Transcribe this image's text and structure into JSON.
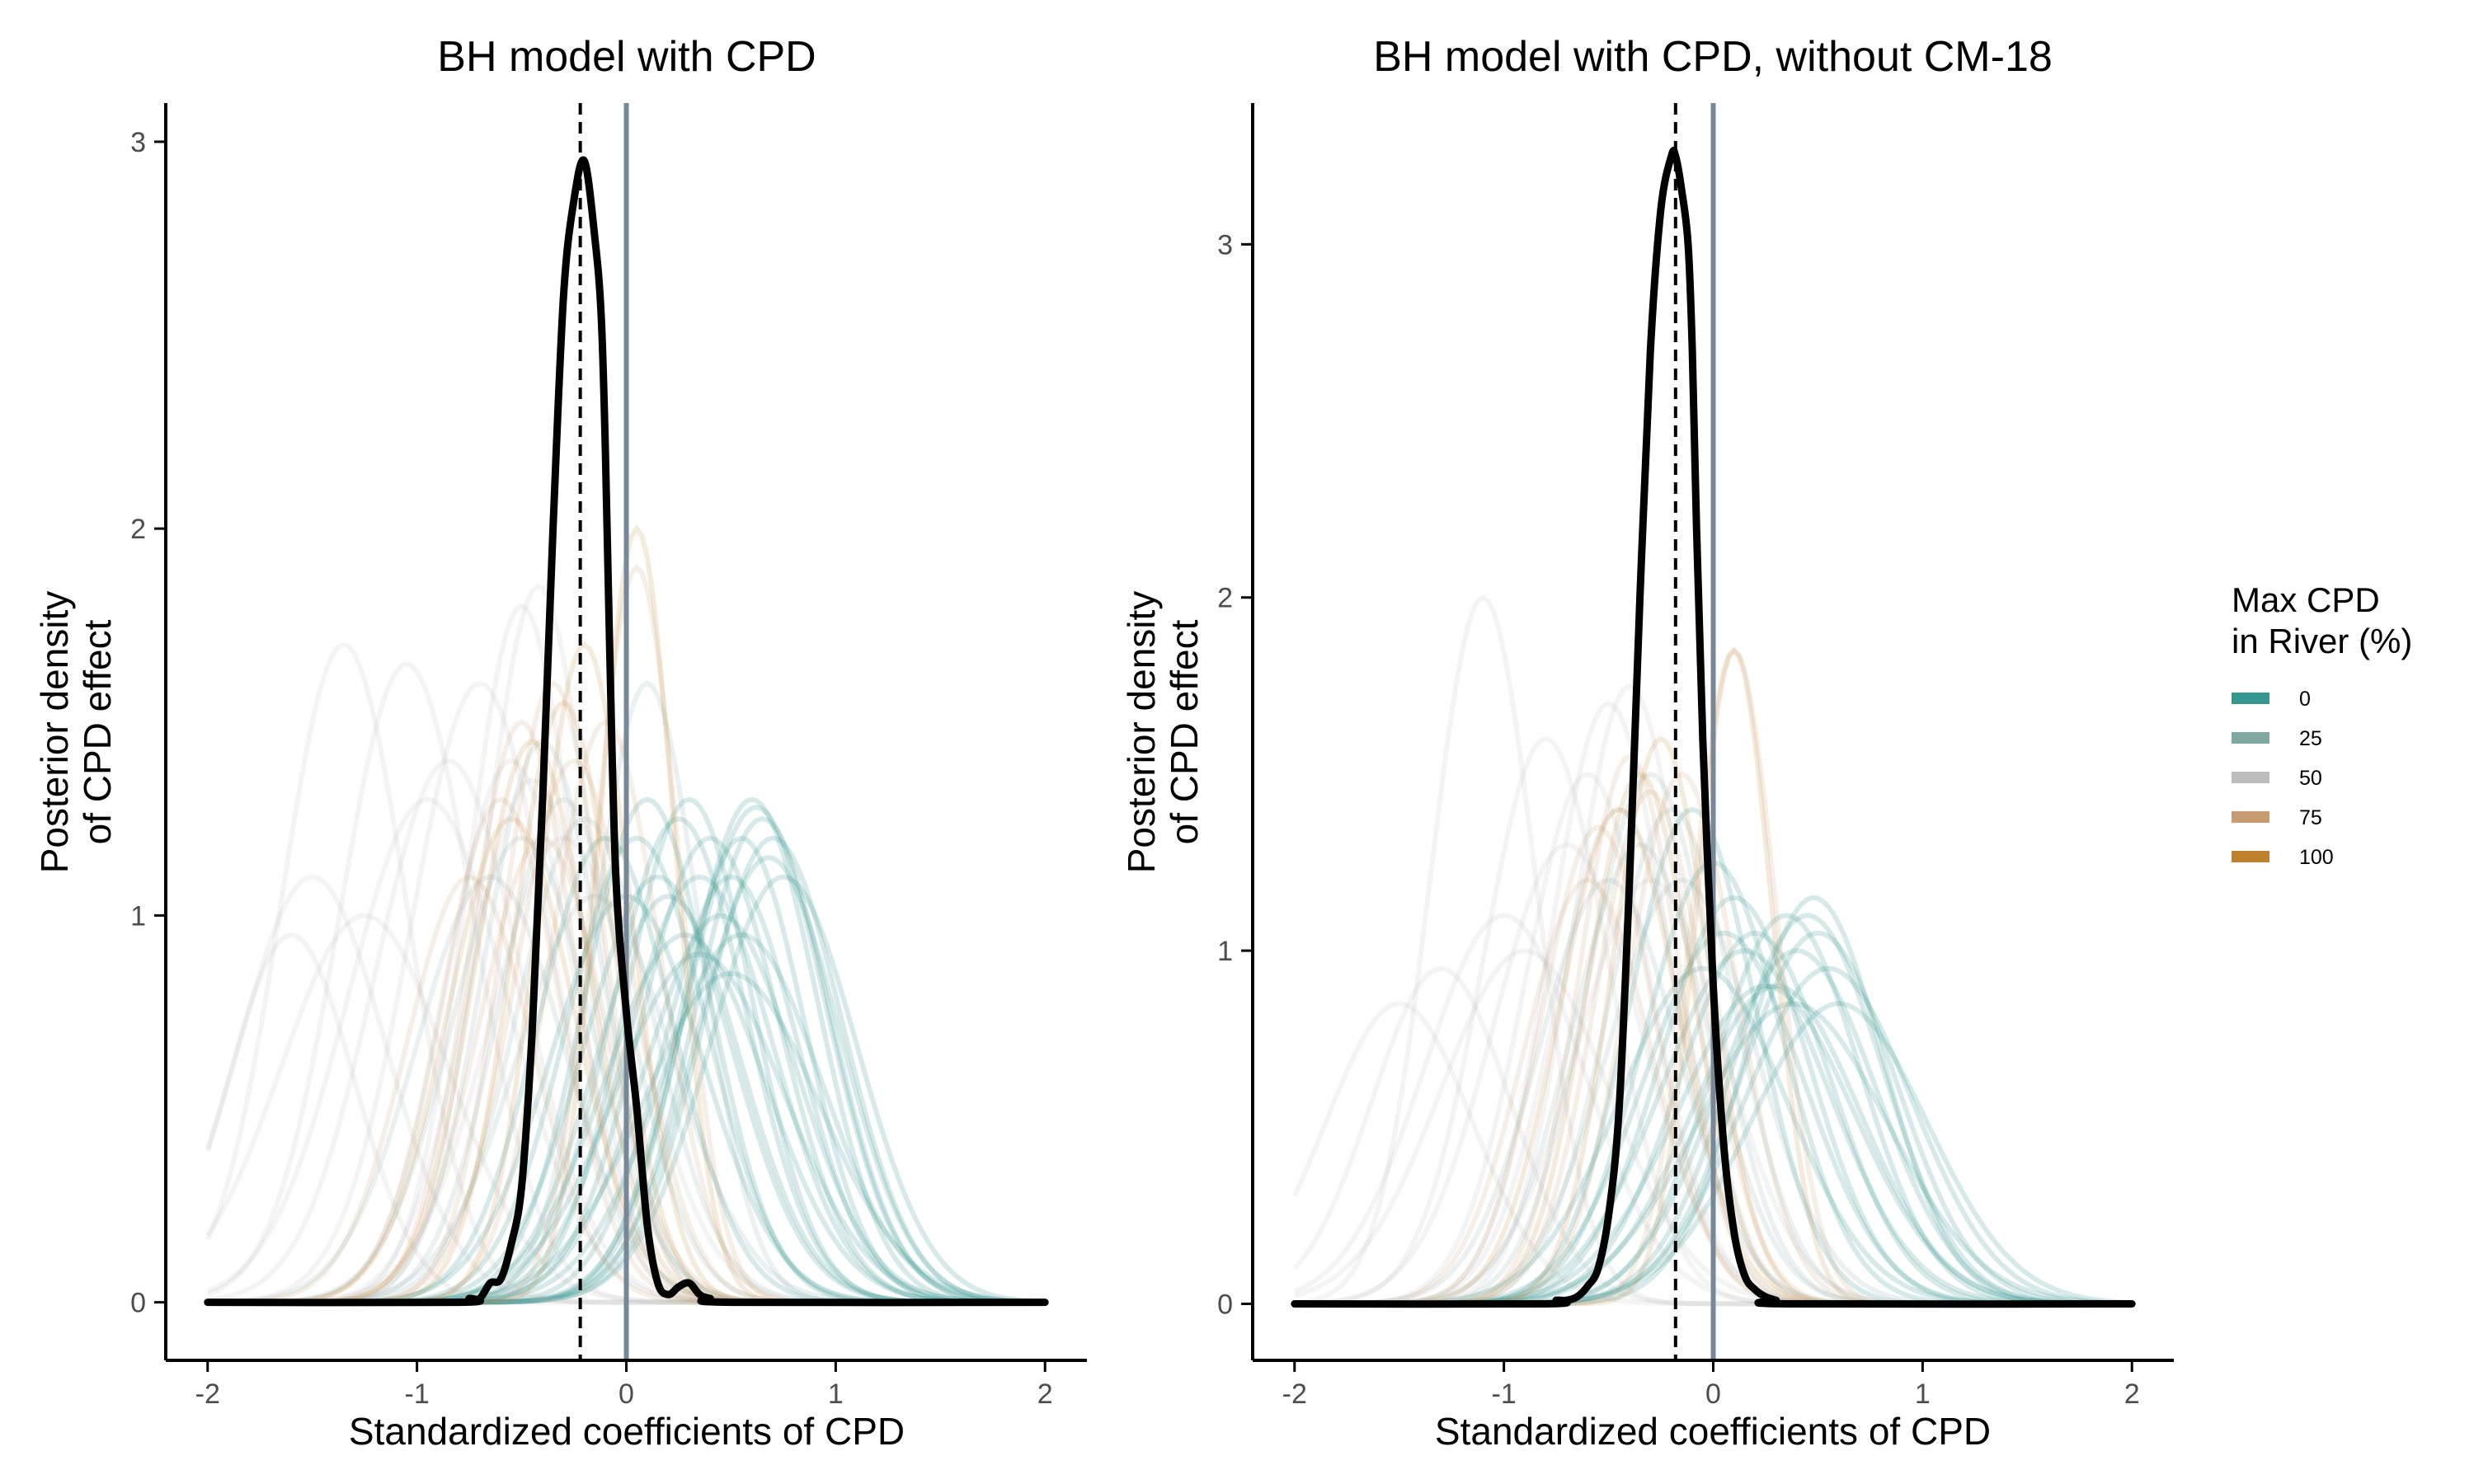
{
  "colors": {
    "mean_line": "#000000",
    "zero_line": "#778899",
    "axis": "#000000",
    "legend_scale": [
      "#35978f",
      "#80a8a3",
      "#bdbdbd",
      "#c79c73",
      "#bf812d"
    ]
  },
  "legend": {
    "title_line1": "Max CPD",
    "title_line2": "in River (%)",
    "items": [
      {
        "label": "0",
        "color": "#35978f"
      },
      {
        "label": "25",
        "color": "#80a8a3"
      },
      {
        "label": "50",
        "color": "#bdbdbd"
      },
      {
        "label": "75",
        "color": "#c79c73"
      },
      {
        "label": "100",
        "color": "#bf812d"
      }
    ]
  },
  "chart_data": [
    {
      "type": "line",
      "title": "BH model with CPD",
      "xlabel": "Standardized coefficients of CPD",
      "ylabel_line1": "Posterior density",
      "ylabel_line2": "of CPD effect",
      "xlim": [
        -2.2,
        2.2
      ],
      "ylim": [
        -0.15,
        3.1
      ],
      "xticks": [
        "-2",
        "-1",
        "0",
        "1",
        "2"
      ],
      "yticks": [
        "0",
        "1",
        "2",
        "3"
      ],
      "vlines": {
        "dashed_x": -0.22,
        "solid_x": 0.0
      },
      "series": [
        {
          "role": "posterior-mean",
          "x": [
            -2.0,
            -0.8,
            -0.75,
            -0.7,
            -0.65,
            -0.6,
            -0.55,
            -0.5,
            -0.45,
            -0.4,
            -0.35,
            -0.3,
            -0.25,
            -0.2,
            -0.15,
            -0.12,
            -0.1,
            -0.08,
            -0.05,
            0.0,
            0.05,
            0.1,
            0.15,
            0.2,
            0.25,
            0.3,
            0.35,
            0.4,
            0.5,
            2.0
          ],
          "y": [
            0.0,
            0.0,
            0.01,
            0.01,
            0.05,
            0.06,
            0.15,
            0.3,
            0.7,
            1.3,
            2.0,
            2.6,
            2.85,
            2.95,
            2.75,
            2.55,
            2.2,
            1.7,
            1.1,
            0.75,
            0.5,
            0.2,
            0.05,
            0.02,
            0.04,
            0.05,
            0.02,
            0.01,
            0.0,
            0.0
          ]
        }
      ],
      "background_curves": {
        "x_range": [
          -2.0,
          2.0
        ],
        "curves": [
          {
            "mu": 0.65,
            "sd": 0.32,
            "peak": 1.25,
            "cpd": 0
          },
          {
            "mu": 0.7,
            "sd": 0.33,
            "peak": 1.2,
            "cpd": 0
          },
          {
            "mu": 0.6,
            "sd": 0.31,
            "peak": 1.3,
            "cpd": 0
          },
          {
            "mu": 0.68,
            "sd": 0.34,
            "peak": 1.15,
            "cpd": 0
          },
          {
            "mu": 0.55,
            "sd": 0.3,
            "peak": 1.2,
            "cpd": 0
          },
          {
            "mu": 0.75,
            "sd": 0.35,
            "peak": 1.1,
            "cpd": 0
          },
          {
            "mu": 0.62,
            "sd": 0.33,
            "peak": 1.28,
            "cpd": 0
          },
          {
            "mu": 0.5,
            "sd": 0.32,
            "peak": 1.1,
            "cpd": 0
          },
          {
            "mu": 0.3,
            "sd": 0.3,
            "peak": 1.3,
            "cpd": 0
          },
          {
            "mu": 0.25,
            "sd": 0.32,
            "peak": 1.25,
            "cpd": 0
          },
          {
            "mu": 0.4,
            "sd": 0.33,
            "peak": 1.2,
            "cpd": 0
          },
          {
            "mu": 0.35,
            "sd": 0.35,
            "peak": 1.1,
            "cpd": 0
          },
          {
            "mu": 0.2,
            "sd": 0.34,
            "peak": 1.05,
            "cpd": 0
          },
          {
            "mu": 0.45,
            "sd": 0.36,
            "peak": 1.0,
            "cpd": 0
          },
          {
            "mu": 0.1,
            "sd": 0.3,
            "peak": 1.3,
            "cpd": 0
          },
          {
            "mu": 0.15,
            "sd": 0.35,
            "peak": 1.1,
            "cpd": 0
          },
          {
            "mu": 0.05,
            "sd": 0.33,
            "peak": 1.2,
            "cpd": 0
          },
          {
            "mu": 0.0,
            "sd": 0.36,
            "peak": 1.05,
            "cpd": 0
          },
          {
            "mu": 0.55,
            "sd": 0.38,
            "peak": 0.95,
            "cpd": 0
          },
          {
            "mu": 0.35,
            "sd": 0.4,
            "peak": 0.9,
            "cpd": 0
          },
          {
            "mu": -0.1,
            "sd": 0.32,
            "peak": 1.2,
            "cpd": 0
          },
          {
            "mu": 0.5,
            "sd": 0.42,
            "peak": 0.85,
            "cpd": 0
          },
          {
            "mu": 0.28,
            "sd": 0.38,
            "peak": 0.95,
            "cpd": 0
          },
          {
            "mu": -0.3,
            "sd": 0.3,
            "peak": 1.3,
            "cpd": 25
          },
          {
            "mu": -0.4,
            "sd": 0.28,
            "peak": 1.45,
            "cpd": 25
          },
          {
            "mu": -0.5,
            "sd": 0.33,
            "peak": 1.2,
            "cpd": 25
          },
          {
            "mu": -0.65,
            "sd": 0.35,
            "peak": 1.1,
            "cpd": 25
          },
          {
            "mu": -0.2,
            "sd": 0.32,
            "peak": 1.25,
            "cpd": 25
          },
          {
            "mu": 0.1,
            "sd": 0.25,
            "peak": 1.6,
            "cpd": 25
          },
          {
            "mu": -0.15,
            "sd": 0.37,
            "peak": 1.05,
            "cpd": 25
          },
          {
            "mu": -0.45,
            "sd": 0.3,
            "peak": 1.35,
            "cpd": 50
          },
          {
            "mu": -0.55,
            "sd": 0.3,
            "peak": 1.4,
            "cpd": 50
          },
          {
            "mu": -0.5,
            "sd": 0.26,
            "peak": 1.8,
            "cpd": 50
          },
          {
            "mu": -0.42,
            "sd": 0.26,
            "peak": 1.85,
            "cpd": 50
          },
          {
            "mu": -1.35,
            "sd": 0.3,
            "peak": 1.7,
            "cpd": 50
          },
          {
            "mu": -1.05,
            "sd": 0.32,
            "peak": 1.65,
            "cpd": 50
          },
          {
            "mu": -1.5,
            "sd": 0.35,
            "peak": 1.1,
            "cpd": 50
          },
          {
            "mu": -1.25,
            "sd": 0.4,
            "peak": 1.0,
            "cpd": 50
          },
          {
            "mu": -1.6,
            "sd": 0.3,
            "peak": 0.95,
            "cpd": 50
          },
          {
            "mu": -0.85,
            "sd": 0.35,
            "peak": 1.4,
            "cpd": 50
          },
          {
            "mu": -0.7,
            "sd": 0.33,
            "peak": 1.6,
            "cpd": 50
          },
          {
            "mu": -0.95,
            "sd": 0.38,
            "peak": 1.3,
            "cpd": 50
          },
          {
            "mu": -0.3,
            "sd": 0.35,
            "peak": 1.2,
            "cpd": 50
          },
          {
            "mu": 0.05,
            "sd": 0.2,
            "peak": 1.9,
            "cpd": 75
          },
          {
            "mu": -0.35,
            "sd": 0.24,
            "peak": 1.6,
            "cpd": 75
          },
          {
            "mu": -0.5,
            "sd": 0.25,
            "peak": 1.5,
            "cpd": 75
          },
          {
            "mu": -0.25,
            "sd": 0.28,
            "peak": 1.4,
            "cpd": 75
          },
          {
            "mu": -0.6,
            "sd": 0.28,
            "peak": 1.3,
            "cpd": 75
          },
          {
            "mu": -0.1,
            "sd": 0.26,
            "peak": 1.5,
            "cpd": 75
          },
          {
            "mu": -0.4,
            "sd": 0.3,
            "peak": 1.2,
            "cpd": 75
          },
          {
            "mu": -0.75,
            "sd": 0.3,
            "peak": 1.1,
            "cpd": 75
          },
          {
            "mu": 0.05,
            "sd": 0.18,
            "peak": 2.0,
            "cpd": 100
          },
          {
            "mu": -0.3,
            "sd": 0.24,
            "peak": 1.55,
            "cpd": 100
          },
          {
            "mu": -0.45,
            "sd": 0.27,
            "peak": 1.45,
            "cpd": 100
          },
          {
            "mu": -0.2,
            "sd": 0.22,
            "peak": 1.7,
            "cpd": 100
          },
          {
            "mu": -0.55,
            "sd": 0.3,
            "peak": 1.25,
            "cpd": 100
          }
        ]
      }
    },
    {
      "type": "line",
      "title": "BH model with CPD, without CM-18",
      "xlabel": "Standardized coefficients of CPD",
      "ylabel_line1": "Posterior density",
      "ylabel_line2": "of CPD effect",
      "xlim": [
        -2.2,
        2.2
      ],
      "ylim": [
        -0.16,
        3.4
      ],
      "xticks": [
        "-2",
        "-1",
        "0",
        "1",
        "2"
      ],
      "yticks": [
        "0",
        "1",
        "2",
        "3"
      ],
      "vlines": {
        "dashed_x": -0.18,
        "solid_x": 0.0
      },
      "series": [
        {
          "role": "posterior-mean",
          "x": [
            -2.0,
            -0.8,
            -0.75,
            -0.7,
            -0.65,
            -0.6,
            -0.55,
            -0.5,
            -0.45,
            -0.4,
            -0.35,
            -0.3,
            -0.25,
            -0.2,
            -0.18,
            -0.15,
            -0.12,
            -0.1,
            -0.08,
            -0.05,
            0.0,
            0.05,
            0.1,
            0.15,
            0.2,
            0.25,
            0.3,
            0.35,
            2.0
          ],
          "y": [
            0.0,
            0.0,
            0.01,
            0.01,
            0.02,
            0.05,
            0.1,
            0.25,
            0.55,
            1.2,
            2.0,
            2.7,
            3.1,
            3.25,
            3.25,
            3.15,
            3.0,
            2.7,
            2.2,
            1.6,
            0.9,
            0.45,
            0.2,
            0.08,
            0.04,
            0.02,
            0.01,
            0.0,
            0.0
          ]
        }
      ],
      "background_curves": {
        "x_range": [
          -2.0,
          2.0
        ],
        "curves": [
          {
            "mu": 0.45,
            "sd": 0.36,
            "peak": 1.1,
            "cpd": 0
          },
          {
            "mu": 0.4,
            "sd": 0.38,
            "peak": 1.0,
            "cpd": 0
          },
          {
            "mu": 0.5,
            "sd": 0.37,
            "peak": 1.05,
            "cpd": 0
          },
          {
            "mu": 0.35,
            "sd": 0.35,
            "peak": 1.1,
            "cpd": 0
          },
          {
            "mu": 0.55,
            "sd": 0.4,
            "peak": 0.95,
            "cpd": 0
          },
          {
            "mu": 0.3,
            "sd": 0.4,
            "peak": 0.9,
            "cpd": 0
          },
          {
            "mu": 0.2,
            "sd": 0.36,
            "peak": 1.05,
            "cpd": 0
          },
          {
            "mu": 0.25,
            "sd": 0.42,
            "peak": 0.9,
            "cpd": 0
          },
          {
            "mu": 0.1,
            "sd": 0.35,
            "peak": 1.15,
            "cpd": 0
          },
          {
            "mu": 0.0,
            "sd": 0.33,
            "peak": 1.25,
            "cpd": 0
          },
          {
            "mu": -0.1,
            "sd": 0.3,
            "peak": 1.4,
            "cpd": 0
          },
          {
            "mu": 0.15,
            "sd": 0.4,
            "peak": 1.0,
            "cpd": 0
          },
          {
            "mu": 0.6,
            "sd": 0.42,
            "peak": 0.85,
            "cpd": 0
          },
          {
            "mu": 0.05,
            "sd": 0.38,
            "peak": 1.05,
            "cpd": 0
          },
          {
            "mu": 0.38,
            "sd": 0.45,
            "peak": 0.85,
            "cpd": 0
          },
          {
            "mu": -0.05,
            "sd": 0.4,
            "peak": 0.95,
            "cpd": 0
          },
          {
            "mu": 0.48,
            "sd": 0.33,
            "peak": 1.15,
            "cpd": 0
          },
          {
            "mu": -0.2,
            "sd": 0.3,
            "peak": 1.4,
            "cpd": 25
          },
          {
            "mu": -0.3,
            "sd": 0.3,
            "peak": 1.5,
            "cpd": 25
          },
          {
            "mu": -0.35,
            "sd": 0.32,
            "peak": 1.3,
            "cpd": 25
          },
          {
            "mu": -0.15,
            "sd": 0.35,
            "peak": 1.2,
            "cpd": 25
          },
          {
            "mu": -0.5,
            "sd": 0.33,
            "peak": 1.2,
            "cpd": 25
          },
          {
            "mu": -0.45,
            "sd": 0.3,
            "peak": 1.4,
            "cpd": 50
          },
          {
            "mu": -0.5,
            "sd": 0.28,
            "peak": 1.7,
            "cpd": 50
          },
          {
            "mu": -0.4,
            "sd": 0.27,
            "peak": 1.75,
            "cpd": 50
          },
          {
            "mu": -1.1,
            "sd": 0.25,
            "peak": 2.0,
            "cpd": 50
          },
          {
            "mu": -0.8,
            "sd": 0.3,
            "peak": 1.6,
            "cpd": 50
          },
          {
            "mu": -1.3,
            "sd": 0.33,
            "peak": 0.95,
            "cpd": 50
          },
          {
            "mu": -1.0,
            "sd": 0.38,
            "peak": 1.1,
            "cpd": 50
          },
          {
            "mu": -1.5,
            "sd": 0.35,
            "peak": 0.85,
            "cpd": 50
          },
          {
            "mu": -0.7,
            "sd": 0.35,
            "peak": 1.3,
            "cpd": 50
          },
          {
            "mu": -0.6,
            "sd": 0.3,
            "peak": 1.5,
            "cpd": 50
          },
          {
            "mu": -0.3,
            "sd": 0.35,
            "peak": 1.2,
            "cpd": 50
          },
          {
            "mu": -0.9,
            "sd": 0.4,
            "peak": 1.0,
            "cpd": 50
          },
          {
            "mu": 0.1,
            "sd": 0.2,
            "peak": 1.85,
            "cpd": 75
          },
          {
            "mu": -0.4,
            "sd": 0.24,
            "peak": 1.55,
            "cpd": 75
          },
          {
            "mu": -0.3,
            "sd": 0.26,
            "peak": 1.45,
            "cpd": 75
          },
          {
            "mu": -0.55,
            "sd": 0.27,
            "peak": 1.35,
            "cpd": 75
          },
          {
            "mu": -0.15,
            "sd": 0.26,
            "peak": 1.5,
            "cpd": 75
          },
          {
            "mu": -0.6,
            "sd": 0.3,
            "peak": 1.2,
            "cpd": 75
          },
          {
            "mu": 0.1,
            "sd": 0.18,
            "peak": 1.85,
            "cpd": 100
          },
          {
            "mu": -0.35,
            "sd": 0.25,
            "peak": 1.5,
            "cpd": 100
          },
          {
            "mu": -0.45,
            "sd": 0.28,
            "peak": 1.4,
            "cpd": 100
          },
          {
            "mu": -0.25,
            "sd": 0.23,
            "peak": 1.6,
            "cpd": 100
          }
        ]
      }
    }
  ]
}
